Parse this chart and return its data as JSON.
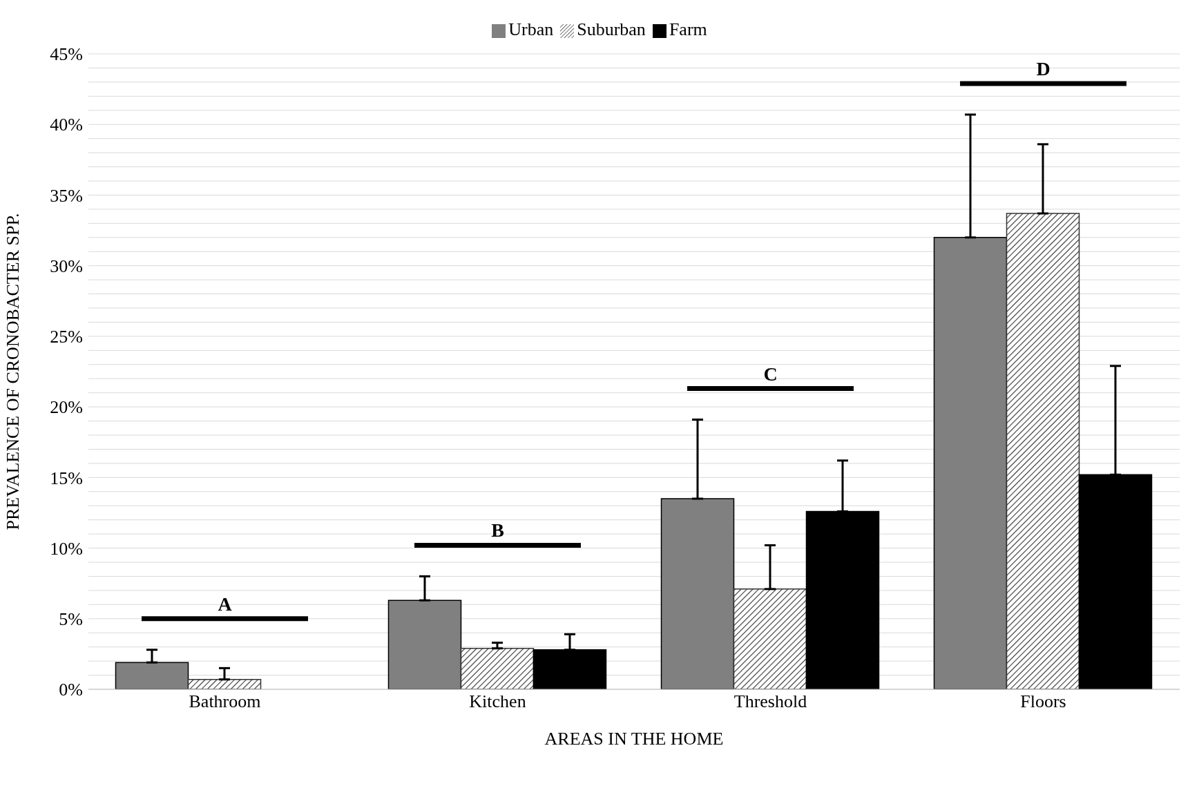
{
  "chart_data": {
    "type": "bar",
    "xlabel": "AREAS IN THE HOME",
    "ylabel": "PREVALENCE OF CRONOBACTER SPP.",
    "categories": [
      "Bathroom",
      "Kitchen",
      "Threshold",
      "Floors"
    ],
    "series": [
      {
        "name": "Urban",
        "color": "#808080",
        "values": [
          1.9,
          6.3,
          13.5,
          32.0
        ],
        "errors": [
          [
            1.9,
            2.8
          ],
          [
            6.3,
            8.0
          ],
          [
            13.5,
            19.1
          ],
          [
            32.0,
            40.7
          ]
        ]
      },
      {
        "name": "Suburban",
        "color": "#333333",
        "values": [
          0.7,
          2.9,
          7.1,
          33.7
        ],
        "errors": [
          [
            0.7,
            1.5
          ],
          [
            2.9,
            3.3
          ],
          [
            7.1,
            10.2
          ],
          [
            33.7,
            38.6
          ]
        ]
      },
      {
        "name": "Farm",
        "color": "#000000",
        "values": [
          0,
          2.8,
          12.6,
          15.2
        ],
        "errors": [
          null,
          [
            2.8,
            3.9
          ],
          [
            12.6,
            16.2
          ],
          [
            15.2,
            22.9
          ]
        ]
      }
    ],
    "ylim": [
      0,
      45
    ],
    "yticks": [
      {
        "value": 0,
        "label": "0%"
      },
      {
        "value": 1,
        "label": null
      },
      {
        "value": 2,
        "label": null
      },
      {
        "value": 3,
        "label": null
      },
      {
        "value": 4,
        "label": null
      },
      {
        "value": 5,
        "label": "5%"
      },
      {
        "value": 6,
        "label": null
      },
      {
        "value": 7,
        "label": null
      },
      {
        "value": 8,
        "label": null
      },
      {
        "value": 9,
        "label": null
      },
      {
        "value": 10,
        "label": "10%"
      },
      {
        "value": 11,
        "label": null
      },
      {
        "value": 12,
        "label": null
      },
      {
        "value": 13,
        "label": null
      },
      {
        "value": 14,
        "label": null
      },
      {
        "value": 15,
        "label": "15%"
      },
      {
        "value": 16,
        "label": null
      },
      {
        "value": 17,
        "label": null
      },
      {
        "value": 18,
        "label": null
      },
      {
        "value": 19,
        "label": null
      },
      {
        "value": 20,
        "label": "20%"
      },
      {
        "value": 21,
        "label": null
      },
      {
        "value": 22,
        "label": null
      },
      {
        "value": 23,
        "label": null
      },
      {
        "value": 24,
        "label": null
      },
      {
        "value": 25,
        "label": "25%"
      },
      {
        "value": 26,
        "label": null
      },
      {
        "value": 27,
        "label": null
      },
      {
        "value": 28,
        "label": null
      },
      {
        "value": 29,
        "label": null
      },
      {
        "value": 30,
        "label": "30%"
      },
      {
        "value": 31,
        "label": null
      },
      {
        "value": 32,
        "label": null
      },
      {
        "value": 33,
        "label": null
      },
      {
        "value": 34,
        "label": null
      },
      {
        "value": 35,
        "label": "35%"
      },
      {
        "value": 36,
        "label": null
      },
      {
        "value": 37,
        "label": null
      },
      {
        "value": 38,
        "label": null
      },
      {
        "value": 39,
        "label": null
      },
      {
        "value": 40,
        "label": "40%"
      },
      {
        "value": 41,
        "label": null
      },
      {
        "value": 42,
        "label": null
      },
      {
        "value": 43,
        "label": null
      },
      {
        "value": 44,
        "label": null
      },
      {
        "value": 45,
        "label": "45%"
      }
    ],
    "grid": "y",
    "legend": "top",
    "annotations": [
      "A",
      "B",
      "C",
      "D"
    ]
  }
}
